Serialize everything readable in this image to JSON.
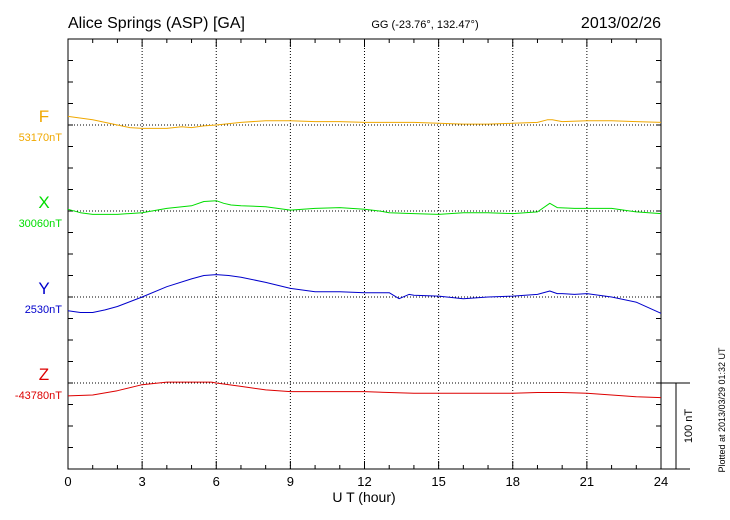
{
  "header": {
    "station": "Alice Springs (ASP)  [GA]",
    "coords": "GG (-23.76°, 132.47°)",
    "date": "2013/02/26"
  },
  "side_note": "Plotted at 2013/03/29 01:32 UT",
  "scale_label": "100 nT",
  "colors": {
    "F": "#f0a800",
    "X": "#00dd00",
    "Y": "#0000cc",
    "Z": "#dd0000",
    "axis": "#000000"
  },
  "chart_data": {
    "type": "line",
    "xlabel": "U T (hour)",
    "x_ticks": [
      0,
      3,
      6,
      9,
      12,
      15,
      18,
      21,
      24
    ],
    "xlim": [
      0,
      24
    ],
    "scale_bar_nT": 100,
    "series": [
      {
        "name": "F",
        "baseline_label": "53170nT",
        "baseline_nT": 53170,
        "x": [
          0,
          1,
          2,
          2.5,
          3,
          4,
          4.6,
          5,
          5.5,
          6,
          7,
          8,
          9,
          10,
          11,
          12,
          13,
          14,
          15,
          16,
          17,
          18,
          19,
          19.4,
          19.6,
          20,
          21,
          22,
          23,
          24
        ],
        "y": [
          53180,
          53176,
          53170,
          53167,
          53166,
          53166,
          53168,
          53167,
          53169,
          53170,
          53173,
          53175,
          53175,
          53174,
          53174,
          53173,
          53173,
          53173,
          53172,
          53171,
          53171,
          53172,
          53173,
          53176,
          53176,
          53174,
          53175,
          53175,
          53174,
          53173
        ]
      },
      {
        "name": "X",
        "baseline_label": "30060nT",
        "baseline_nT": 30060,
        "x": [
          0,
          0.5,
          1,
          2,
          3,
          4,
          5,
          5.5,
          6,
          6.3,
          6.6,
          7,
          8,
          9,
          10,
          11,
          12,
          12.6,
          13,
          14,
          15,
          16,
          17,
          18,
          19,
          19.5,
          19.8,
          20.5,
          21,
          22,
          23,
          24
        ],
        "y": [
          30062,
          30058,
          30056,
          30056,
          30058,
          30063,
          30066,
          30071,
          30072,
          30069,
          30067,
          30066,
          30065,
          30061,
          30063,
          30064,
          30062,
          30060,
          30058,
          30057,
          30056,
          30058,
          30058,
          30057,
          30059,
          30069,
          30064,
          30063,
          30063,
          30063,
          30059,
          30057
        ]
      },
      {
        "name": "Y",
        "baseline_label": "2530nT",
        "baseline_nT": 2530,
        "x": [
          0,
          0.5,
          1,
          1.5,
          2,
          3,
          4,
          5,
          5.5,
          6,
          6.5,
          7,
          8,
          9,
          10,
          11,
          12,
          13,
          13.4,
          13.8,
          14,
          15,
          16,
          17,
          18,
          19,
          19.5,
          19.8,
          20,
          20.5,
          21,
          22,
          23,
          24
        ],
        "y": [
          2514,
          2512,
          2512,
          2515,
          2519,
          2530,
          2542,
          2551,
          2555,
          2556,
          2555,
          2553,
          2547,
          2540,
          2536,
          2536,
          2535,
          2535,
          2528,
          2533,
          2532,
          2531,
          2528,
          2530,
          2531,
          2533,
          2537,
          2534,
          2534,
          2533,
          2534,
          2530,
          2524,
          2511
        ]
      },
      {
        "name": "Z",
        "baseline_label": "-43780nT",
        "baseline_nT": -43780,
        "x": [
          0,
          1,
          2,
          3,
          4,
          5,
          5.8,
          6,
          7,
          8,
          9,
          10,
          11,
          12,
          13,
          14,
          15,
          16,
          17,
          18,
          19,
          20,
          21,
          22,
          23,
          24
        ],
        "y": [
          -43795,
          -43794,
          -43789,
          -43782,
          -43779,
          -43779,
          -43779,
          -43780,
          -43784,
          -43788,
          -43790,
          -43790,
          -43790,
          -43790,
          -43791,
          -43792,
          -43792,
          -43792,
          -43792,
          -43792,
          -43791,
          -43791,
          -43792,
          -43794,
          -43796,
          -43797
        ]
      }
    ]
  }
}
